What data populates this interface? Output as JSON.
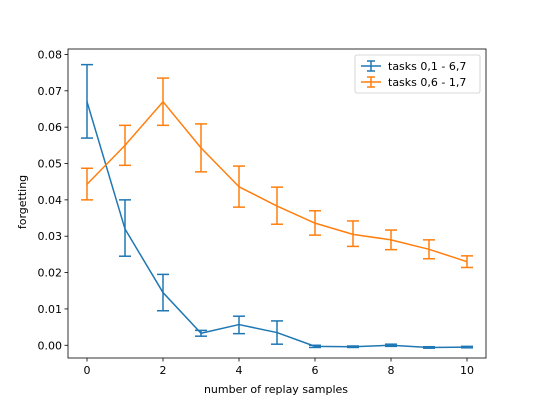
{
  "chart_data": {
    "type": "line",
    "title": "",
    "xlabel": "number of replay samples",
    "ylabel": "forgetting",
    "xlim": [
      -0.5,
      10.5
    ],
    "ylim": [
      -0.0035,
      0.0815
    ],
    "xticks": [
      0,
      2,
      4,
      6,
      8,
      10
    ],
    "xtick_labels": [
      "0",
      "2",
      "4",
      "6",
      "8",
      "10"
    ],
    "yticks": [
      0.0,
      0.01,
      0.02,
      0.03,
      0.04,
      0.05,
      0.06,
      0.07,
      0.08
    ],
    "ytick_labels": [
      "0.00",
      "0.01",
      "0.02",
      "0.03",
      "0.04",
      "0.05",
      "0.06",
      "0.07",
      "0.08"
    ],
    "grid": false,
    "legend_position": "top-right",
    "x": [
      0,
      1,
      2,
      3,
      4,
      5,
      6,
      7,
      8,
      9,
      10
    ],
    "series": [
      {
        "name": "tasks 0,1 - 6,7",
        "color": "#1f77b4",
        "values": [
          0.067,
          0.032,
          0.0145,
          0.0033,
          0.0057,
          0.0035,
          -0.0003,
          -0.0004,
          0.0,
          -0.0006,
          -0.0005
        ],
        "err_low": [
          0.057,
          0.0245,
          0.0095,
          0.0025,
          0.0032,
          0.0003,
          -0.0006,
          -0.0006,
          -0.0003,
          -0.0008,
          -0.0007
        ],
        "err_high": [
          0.0772,
          0.04,
          0.0195,
          0.0041,
          0.008,
          0.0067,
          0.0,
          -0.0002,
          0.0003,
          -0.0004,
          -0.0003
        ]
      },
      {
        "name": "tasks 0,6 - 1,7",
        "color": "#ff7f0e",
        "values": [
          0.0443,
          0.055,
          0.067,
          0.0543,
          0.0436,
          0.0383,
          0.0336,
          0.0305,
          0.029,
          0.0264,
          0.023
        ],
        "err_low": [
          0.04,
          0.0495,
          0.0605,
          0.0477,
          0.038,
          0.0333,
          0.0303,
          0.0272,
          0.0263,
          0.0238,
          0.0214
        ],
        "err_high": [
          0.0487,
          0.0605,
          0.0735,
          0.0609,
          0.0493,
          0.0435,
          0.037,
          0.0342,
          0.0317,
          0.029,
          0.0246
        ]
      }
    ]
  }
}
